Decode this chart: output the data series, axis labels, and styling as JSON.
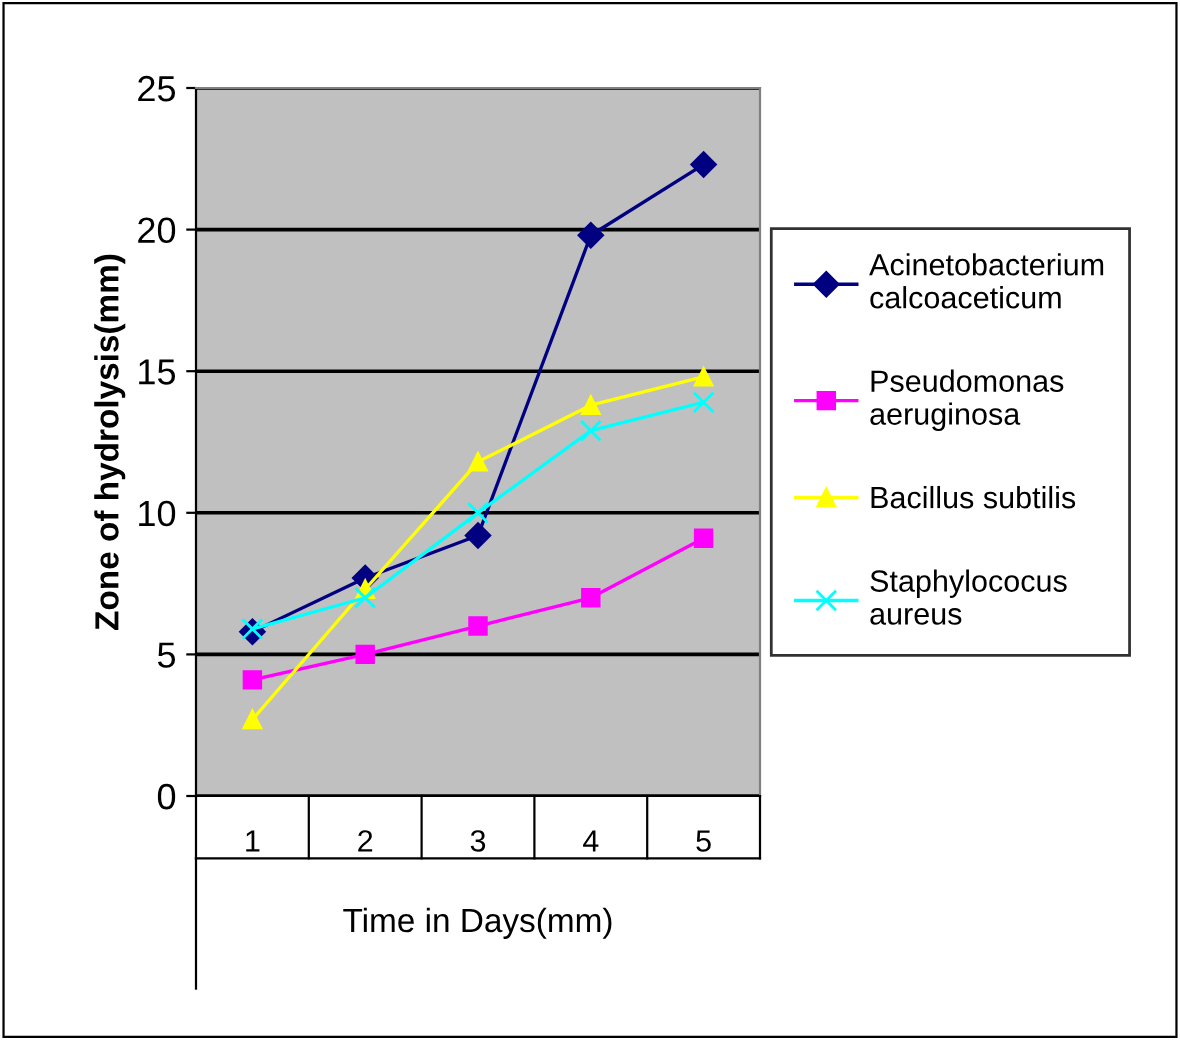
{
  "chart_data": {
    "type": "line",
    "xlabel": "Time in Days(mm)",
    "ylabel": "Zone of hydrolysis(mm)",
    "categories": [
      "1",
      "2",
      "3",
      "4",
      "5"
    ],
    "series": [
      {
        "name": "Acinetobacterium\ncalcoaceticum",
        "color": "#000080",
        "marker": "diamond",
        "values": [
          5.8,
          7.7,
          9.2,
          19.8,
          22.3
        ]
      },
      {
        "name": "Pseudomonas\naeruginosa",
        "color": "#ff00ff",
        "marker": "square",
        "values": [
          4.1,
          5.0,
          6.0,
          7.0,
          9.1
        ]
      },
      {
        "name": "Bacillus subtilis",
        "color": "#ffff00",
        "marker": "triangle",
        "values": [
          2.7,
          7.3,
          11.8,
          13.8,
          14.8
        ]
      },
      {
        "name": "Staphylococus\naureus",
        "color": "#00ffff",
        "marker": "cross",
        "values": [
          5.9,
          7.0,
          10.0,
          12.9,
          13.9
        ]
      }
    ],
    "ylim": [
      0,
      25
    ],
    "yticks": [
      0,
      5,
      10,
      15,
      20,
      25
    ],
    "grid": "y",
    "legend": "right",
    "line_style": "solid"
  }
}
